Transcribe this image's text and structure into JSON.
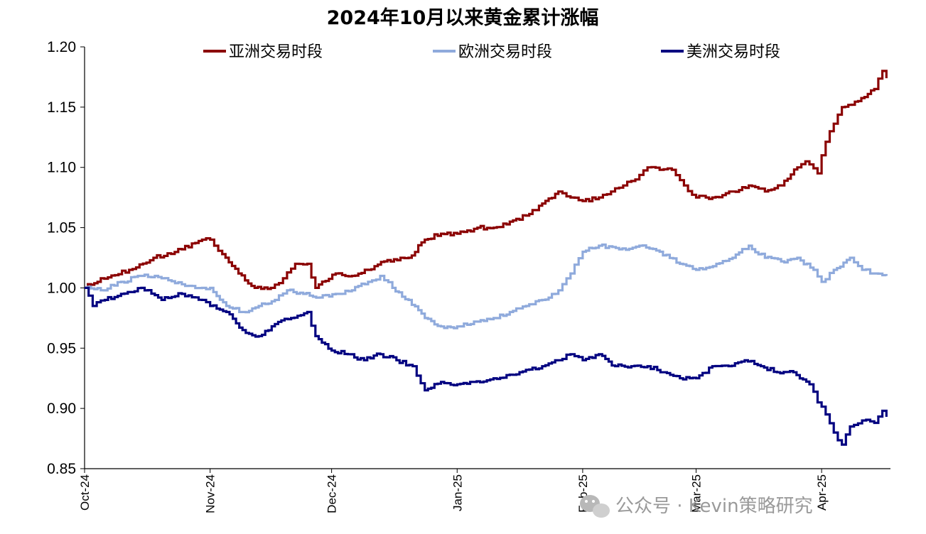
{
  "chart_data": {
    "type": "line",
    "title": "2024年10月以来黄金累计涨幅",
    "xlabel": "",
    "ylabel": "",
    "ylim": [
      0.85,
      1.2
    ],
    "yticks": [
      "0.85",
      "0.90",
      "0.95",
      "1.00",
      "1.05",
      "1.10",
      "1.15",
      "1.20"
    ],
    "xticks": [
      "Oct-24",
      "Nov-24",
      "Dec-24",
      "Jan-25",
      "Feb-25",
      "Mar-25",
      "Apr-25"
    ],
    "x_dates": [
      "2024-10-01",
      "2024-10-15",
      "2024-11-01",
      "2024-11-15",
      "2024-12-01",
      "2024-12-15",
      "2025-01-01",
      "2025-01-15",
      "2025-02-01",
      "2025-02-15",
      "2025-03-01",
      "2025-03-15",
      "2025-04-01",
      "2025-04-07",
      "2025-04-15",
      "2025-04-22"
    ],
    "legend_position": "top",
    "grid": false,
    "series": [
      {
        "name": "亚洲交易时段",
        "color": "#8B0000",
        "points": [
          [
            "2024-10-01",
            1.0
          ],
          [
            "2024-10-05",
            1.008
          ],
          [
            "2024-10-12",
            1.015
          ],
          [
            "2024-10-18",
            1.025
          ],
          [
            "2024-10-25",
            1.032
          ],
          [
            "2024-10-30",
            1.04
          ],
          [
            "2024-11-01",
            1.04
          ],
          [
            "2024-11-04",
            1.028
          ],
          [
            "2024-11-08",
            1.012
          ],
          [
            "2024-11-12",
            1.0
          ],
          [
            "2024-11-16",
            1.0
          ],
          [
            "2024-11-19",
            1.008
          ],
          [
            "2024-11-22",
            1.02
          ],
          [
            "2024-11-25",
            1.02
          ],
          [
            "2024-11-27",
            1.0
          ],
          [
            "2024-12-02",
            1.012
          ],
          [
            "2024-12-06",
            1.01
          ],
          [
            "2024-12-10",
            1.015
          ],
          [
            "2024-12-14",
            1.022
          ],
          [
            "2024-12-18",
            1.025
          ],
          [
            "2024-12-20",
            1.025
          ],
          [
            "2024-12-24",
            1.04
          ],
          [
            "2024-12-28",
            1.045
          ],
          [
            "2025-01-01",
            1.045
          ],
          [
            "2025-01-06",
            1.05
          ],
          [
            "2025-01-10",
            1.05
          ],
          [
            "2025-01-14",
            1.055
          ],
          [
            "2025-01-18",
            1.06
          ],
          [
            "2025-01-22",
            1.07
          ],
          [
            "2025-01-26",
            1.08
          ],
          [
            "2025-01-29",
            1.075
          ],
          [
            "2025-02-01",
            1.072
          ],
          [
            "2025-02-05",
            1.075
          ],
          [
            "2025-02-08",
            1.08
          ],
          [
            "2025-02-11",
            1.085
          ],
          [
            "2025-02-14",
            1.09
          ],
          [
            "2025-02-17",
            1.1
          ],
          [
            "2025-02-20",
            1.098
          ],
          [
            "2025-02-23",
            1.098
          ],
          [
            "2025-02-26",
            1.085
          ],
          [
            "2025-03-01",
            1.075
          ],
          [
            "2025-03-05",
            1.075
          ],
          [
            "2025-03-10",
            1.08
          ],
          [
            "2025-03-14",
            1.085
          ],
          [
            "2025-03-18",
            1.08
          ],
          [
            "2025-03-22",
            1.085
          ],
          [
            "2025-03-26",
            1.1
          ],
          [
            "2025-03-28",
            1.105
          ],
          [
            "2025-03-31",
            1.095
          ],
          [
            "2025-04-01",
            1.11
          ],
          [
            "2025-04-03",
            1.13
          ],
          [
            "2025-04-06",
            1.15
          ],
          [
            "2025-04-10",
            1.155
          ],
          [
            "2025-04-14",
            1.165
          ],
          [
            "2025-04-16",
            1.18
          ],
          [
            "2025-04-17",
            1.174
          ]
        ]
      },
      {
        "name": "欧洲交易时段",
        "color": "#8FAADC",
        "points": [
          [
            "2024-10-01",
            1.0
          ],
          [
            "2024-10-05",
            0.998
          ],
          [
            "2024-10-10",
            1.005
          ],
          [
            "2024-10-15",
            1.01
          ],
          [
            "2024-10-20",
            1.008
          ],
          [
            "2024-10-25",
            1.003
          ],
          [
            "2024-10-30",
            1.0
          ],
          [
            "2024-11-01",
            1.0
          ],
          [
            "2024-11-05",
            0.985
          ],
          [
            "2024-11-09",
            0.98
          ],
          [
            "2024-11-13",
            0.985
          ],
          [
            "2024-11-17",
            0.99
          ],
          [
            "2024-11-20",
            0.998
          ],
          [
            "2024-11-24",
            0.995
          ],
          [
            "2024-11-28",
            0.992
          ],
          [
            "2024-12-02",
            0.995
          ],
          [
            "2024-12-06",
            0.998
          ],
          [
            "2024-12-10",
            1.005
          ],
          [
            "2024-12-13",
            1.01
          ],
          [
            "2024-12-16",
            1.0
          ],
          [
            "2024-12-20",
            0.99
          ],
          [
            "2024-12-24",
            0.975
          ],
          [
            "2024-12-28",
            0.968
          ],
          [
            "2025-01-01",
            0.968
          ],
          [
            "2025-01-06",
            0.972
          ],
          [
            "2025-01-10",
            0.975
          ],
          [
            "2025-01-14",
            0.98
          ],
          [
            "2025-01-18",
            0.985
          ],
          [
            "2025-01-22",
            0.99
          ],
          [
            "2025-01-26",
            0.998
          ],
          [
            "2025-01-29",
            1.012
          ],
          [
            "2025-02-01",
            1.03
          ],
          [
            "2025-02-05",
            1.035
          ],
          [
            "2025-02-10",
            1.032
          ],
          [
            "2025-02-15",
            1.035
          ],
          [
            "2025-02-20",
            1.03
          ],
          [
            "2025-02-25",
            1.02
          ],
          [
            "2025-03-01",
            1.015
          ],
          [
            "2025-03-06",
            1.02
          ],
          [
            "2025-03-10",
            1.025
          ],
          [
            "2025-03-14",
            1.035
          ],
          [
            "2025-03-18",
            1.025
          ],
          [
            "2025-03-22",
            1.022
          ],
          [
            "2025-03-26",
            1.025
          ],
          [
            "2025-03-30",
            1.015
          ],
          [
            "2025-04-01",
            1.005
          ],
          [
            "2025-04-04",
            1.015
          ],
          [
            "2025-04-08",
            1.025
          ],
          [
            "2025-04-11",
            1.015
          ],
          [
            "2025-04-14",
            1.012
          ],
          [
            "2025-04-17",
            1.01
          ]
        ]
      },
      {
        "name": "美洲交易时段",
        "color": "#000080",
        "points": [
          [
            "2024-10-01",
            1.0
          ],
          [
            "2024-10-03",
            0.985
          ],
          [
            "2024-10-06",
            0.99
          ],
          [
            "2024-10-10",
            0.995
          ],
          [
            "2024-10-15",
            1.0
          ],
          [
            "2024-10-20",
            0.99
          ],
          [
            "2024-10-25",
            0.995
          ],
          [
            "2024-10-30",
            0.99
          ],
          [
            "2024-11-01",
            0.985
          ],
          [
            "2024-11-05",
            0.98
          ],
          [
            "2024-11-09",
            0.965
          ],
          [
            "2024-11-13",
            0.96
          ],
          [
            "2024-11-17",
            0.97
          ],
          [
            "2024-11-21",
            0.975
          ],
          [
            "2024-11-25",
            0.98
          ],
          [
            "2024-11-27",
            0.96
          ],
          [
            "2024-12-01",
            0.948
          ],
          [
            "2024-12-05",
            0.945
          ],
          [
            "2024-12-09",
            0.94
          ],
          [
            "2024-12-13",
            0.945
          ],
          [
            "2024-12-17",
            0.94
          ],
          [
            "2024-12-21",
            0.935
          ],
          [
            "2024-12-24",
            0.915
          ],
          [
            "2024-12-28",
            0.922
          ],
          [
            "2025-01-01",
            0.92
          ],
          [
            "2025-01-05",
            0.922
          ],
          [
            "2025-01-10",
            0.925
          ],
          [
            "2025-01-14",
            0.928
          ],
          [
            "2025-01-18",
            0.932
          ],
          [
            "2025-01-22",
            0.935
          ],
          [
            "2025-01-26",
            0.94
          ],
          [
            "2025-01-29",
            0.945
          ],
          [
            "2025-02-01",
            0.94
          ],
          [
            "2025-02-05",
            0.945
          ],
          [
            "2025-02-09",
            0.935
          ],
          [
            "2025-02-13",
            0.935
          ],
          [
            "2025-02-17",
            0.935
          ],
          [
            "2025-02-21",
            0.93
          ],
          [
            "2025-02-25",
            0.925
          ],
          [
            "2025-03-01",
            0.925
          ],
          [
            "2025-03-05",
            0.935
          ],
          [
            "2025-03-09",
            0.935
          ],
          [
            "2025-03-13",
            0.94
          ],
          [
            "2025-03-17",
            0.935
          ],
          [
            "2025-03-21",
            0.93
          ],
          [
            "2025-03-25",
            0.93
          ],
          [
            "2025-03-29",
            0.92
          ],
          [
            "2025-03-31",
            0.905
          ],
          [
            "2025-04-02",
            0.895
          ],
          [
            "2025-04-04",
            0.88
          ],
          [
            "2025-04-06",
            0.87
          ],
          [
            "2025-04-08",
            0.885
          ],
          [
            "2025-04-11",
            0.89
          ],
          [
            "2025-04-14",
            0.888
          ],
          [
            "2025-04-16",
            0.898
          ],
          [
            "2025-04-17",
            0.893
          ]
        ]
      }
    ]
  },
  "watermark": {
    "text": "公众号 · Kevin策略研究",
    "icon": "wechat-icon"
  }
}
